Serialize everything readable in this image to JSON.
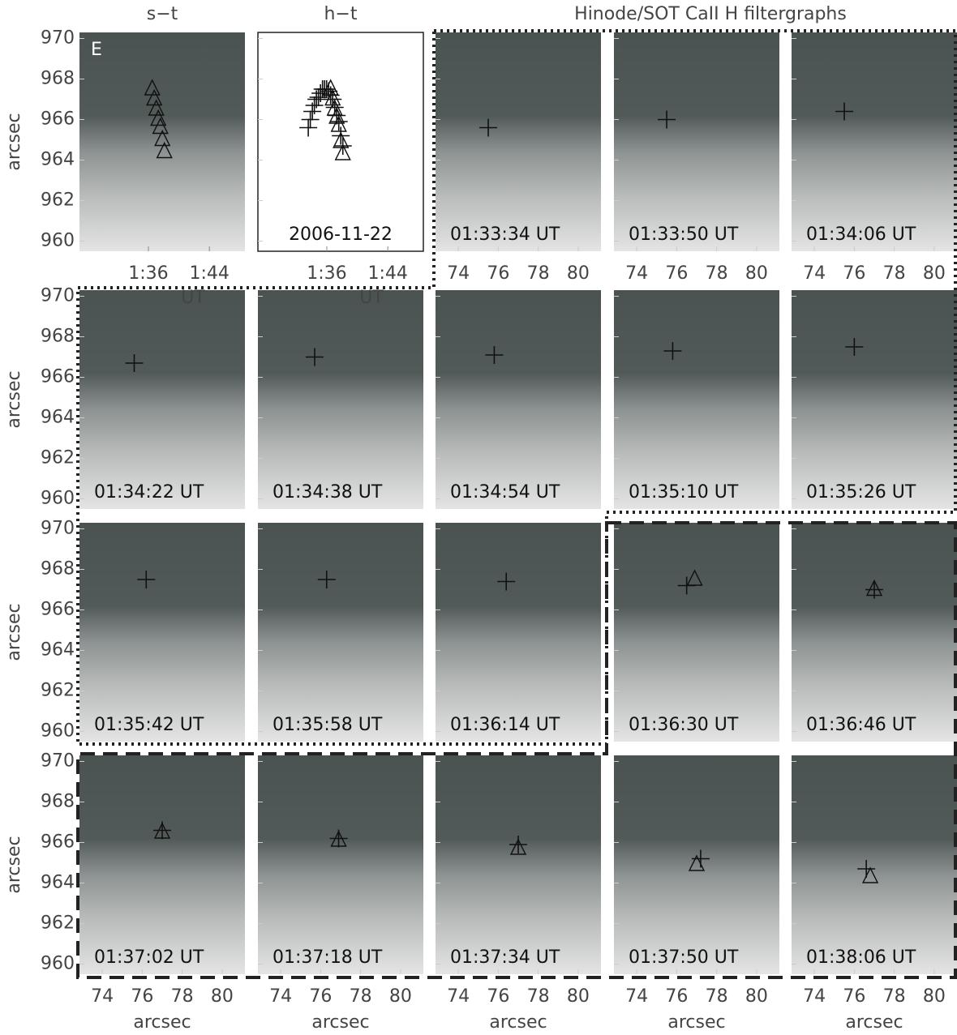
{
  "figure": {
    "titles": [
      "s−t",
      "h−t",
      "Hinode/SOT CaII H filtergraphs"
    ],
    "panel_label": "E",
    "date": "2006-11-22",
    "y_axis": {
      "label": "arcsec",
      "ylim": [
        959.5,
        970.3
      ],
      "ticks": [
        960,
        962,
        964,
        966,
        968,
        970
      ]
    },
    "x_axis_image": {
      "label": "arcsec",
      "xlim": [
        72.86,
        81.14
      ],
      "ticks": [
        74,
        76,
        78,
        80
      ]
    },
    "x_axis_time": {
      "label": "UT",
      "xlim": [
        86.96,
        108.66
      ],
      "ticks": [
        {
          "value": 96,
          "label": "1:36"
        },
        {
          "value": 104,
          "label": "1:44"
        }
      ]
    },
    "st_points": {
      "t": [
        96.5,
        96.767,
        97.033,
        97.3,
        97.567,
        97.833,
        98.1
      ],
      "y": [
        967.5,
        967.0,
        966.5,
        966.0,
        965.6,
        965.0,
        964.4
      ]
    },
    "frames": [
      {
        "time": "01:33:34 UT",
        "t": 93.567,
        "cross": {
          "x": 75.5,
          "y": 965.6
        }
      },
      {
        "time": "01:33:50 UT",
        "t": 93.833,
        "cross": {
          "x": 75.5,
          "y": 966.0
        }
      },
      {
        "time": "01:34:06 UT",
        "t": 94.1,
        "cross": {
          "x": 75.5,
          "y": 966.4
        }
      },
      {
        "time": "01:34:22 UT",
        "t": 94.367,
        "cross": {
          "x": 75.6,
          "y": 966.7
        }
      },
      {
        "time": "01:34:38 UT",
        "t": 94.633,
        "cross": {
          "x": 75.7,
          "y": 967.0
        }
      },
      {
        "time": "01:34:54 UT",
        "t": 94.9,
        "cross": {
          "x": 75.8,
          "y": 967.1
        }
      },
      {
        "time": "01:35:10 UT",
        "t": 95.167,
        "cross": {
          "x": 75.8,
          "y": 967.3
        }
      },
      {
        "time": "01:35:26 UT",
        "t": 95.433,
        "cross": {
          "x": 76.0,
          "y": 967.5
        }
      },
      {
        "time": "01:35:42 UT",
        "t": 95.7,
        "cross": {
          "x": 76.2,
          "y": 967.5
        }
      },
      {
        "time": "01:35:58 UT",
        "t": 95.967,
        "cross": {
          "x": 76.3,
          "y": 967.5
        }
      },
      {
        "time": "01:36:14 UT",
        "t": 96.233,
        "cross": {
          "x": 76.4,
          "y": 967.4
        }
      },
      {
        "time": "01:36:30 UT",
        "t": 96.5,
        "cross": {
          "x": 76.5,
          "y": 967.2
        },
        "triangle": {
          "x": 76.9,
          "y": 967.5
        }
      },
      {
        "time": "01:36:46 UT",
        "t": 96.767,
        "cross": {
          "x": 77.0,
          "y": 967.0
        },
        "triangle": {
          "x": 77.0,
          "y": 967.0
        }
      },
      {
        "time": "01:37:02 UT",
        "t": 97.033,
        "cross": {
          "x": 77.0,
          "y": 966.6
        },
        "triangle": {
          "x": 77.0,
          "y": 966.5
        }
      },
      {
        "time": "01:37:18 UT",
        "t": 97.3,
        "cross": {
          "x": 76.9,
          "y": 966.2
        },
        "triangle": {
          "x": 76.9,
          "y": 966.1
        }
      },
      {
        "time": "01:37:34 UT",
        "t": 97.567,
        "cross": {
          "x": 77.0,
          "y": 965.9
        },
        "triangle": {
          "x": 77.0,
          "y": 965.7
        }
      },
      {
        "time": "01:37:50 UT",
        "t": 97.833,
        "cross": {
          "x": 77.2,
          "y": 965.2
        },
        "triangle": {
          "x": 77.0,
          "y": 964.9
        }
      },
      {
        "time": "01:38:06 UT",
        "t": 98.1,
        "cross": {
          "x": 76.6,
          "y": 964.7
        },
        "triangle": {
          "x": 76.8,
          "y": 964.3
        }
      }
    ]
  }
}
